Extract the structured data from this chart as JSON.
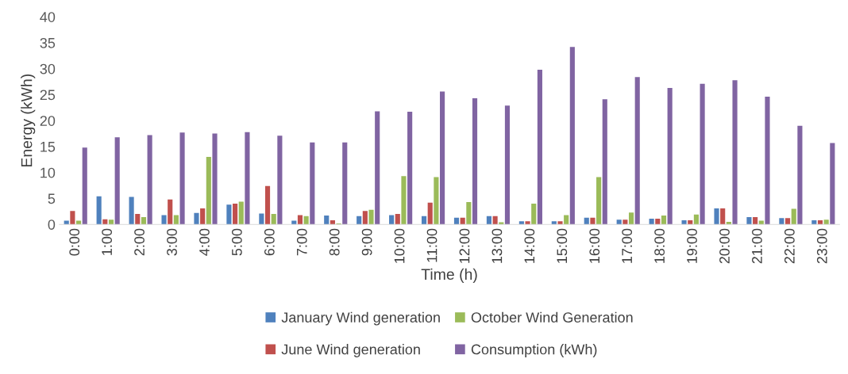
{
  "chart_data": {
    "type": "bar",
    "xlabel": "Time (h)",
    "ylabel": "Energy (kWh)",
    "categories": [
      "0:00",
      "1:00",
      "2:00",
      "3:00",
      "4:00",
      "5:00",
      "6:00",
      "7:00",
      "8:00",
      "9:00",
      "10:00",
      "11:00",
      "12:00",
      "13:00",
      "14:00",
      "15:00",
      "16:00",
      "17:00",
      "18:00",
      "19:00",
      "20:00",
      "21:00",
      "22:00",
      "23:00"
    ],
    "ylim": [
      0,
      40
    ],
    "yticks": [
      0,
      5,
      10,
      15,
      20,
      25,
      30,
      35,
      40
    ],
    "grid": false,
    "legend": "bottom",
    "series": [
      {
        "name": "January Wind generation",
        "color": "#4f81bd",
        "values": [
          0.7,
          5.4,
          5.3,
          1.8,
          2.2,
          3.8,
          2.1,
          0.7,
          1.7,
          1.6,
          1.8,
          1.6,
          1.3,
          1.6,
          0.6,
          0.6,
          1.3,
          0.9,
          1.1,
          0.8,
          3.1,
          1.4,
          1.2,
          0.8
        ]
      },
      {
        "name": "June Wind generation",
        "color": "#c0504d",
        "values": [
          2.6,
          1.0,
          2.0,
          4.8,
          3.1,
          4.0,
          7.4,
          1.8,
          0.8,
          2.6,
          2.0,
          4.2,
          1.3,
          1.6,
          0.6,
          0.6,
          1.3,
          0.9,
          1.1,
          0.8,
          3.1,
          1.4,
          1.2,
          0.8
        ]
      },
      {
        "name": "October Wind Generation",
        "color": "#9bbb59",
        "values": [
          0.7,
          0.9,
          1.4,
          1.8,
          13.0,
          4.4,
          2.0,
          1.6,
          0.2,
          2.8,
          9.3,
          9.1,
          4.3,
          0.4,
          4.0,
          1.8,
          9.1,
          2.3,
          1.7,
          1.9,
          0.5,
          0.7,
          3.0,
          0.9
        ]
      },
      {
        "name": "Consumption (kWh)",
        "color": "#8064a2",
        "values": [
          14.8,
          16.8,
          17.2,
          17.7,
          17.5,
          17.8,
          17.1,
          15.8,
          15.8,
          21.8,
          21.7,
          25.6,
          24.3,
          22.9,
          29.8,
          34.2,
          24.1,
          28.4,
          26.3,
          27.1,
          27.8,
          24.6,
          19.0,
          15.7
        ]
      }
    ]
  }
}
